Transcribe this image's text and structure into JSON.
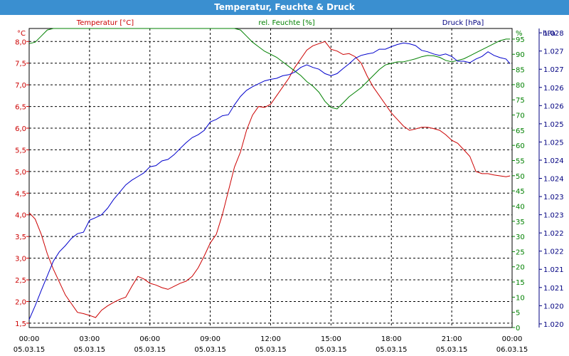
{
  "window": {
    "title": "Temperatur, Feuchte & Druck"
  },
  "chart_data": {
    "type": "line",
    "title": "Temperatur, Feuchte & Druck",
    "colors": {
      "temperature": "#cc0000",
      "humidity": "#008000",
      "pressure": "#0000cc",
      "titlebar": "#3a8fd0"
    },
    "grid": true,
    "x_ticks": [
      {
        "time": "00:00",
        "date": "05.03.15"
      },
      {
        "time": "03:00",
        "date": "05.03.15"
      },
      {
        "time": "06:00",
        "date": "05.03.15"
      },
      {
        "time": "09:00",
        "date": "05.03.15"
      },
      {
        "time": "12:00",
        "date": "05.03.15"
      },
      {
        "time": "15:00",
        "date": "05.03.15"
      },
      {
        "time": "18:00",
        "date": "05.03.15"
      },
      {
        "time": "21:00",
        "date": "05.03.15"
      },
      {
        "time": "00:00",
        "date": "06.03.15"
      }
    ],
    "axes": {
      "temperature": {
        "label": "Temperatur [°C]",
        "unit": "°C",
        "min": 1.4,
        "max": 8.3,
        "ticks": [
          "1,5",
          "2,0",
          "2,5",
          "3,0",
          "3,5",
          "4,0",
          "4,5",
          "5,0",
          "5,5",
          "6,0",
          "6,5",
          "7,0",
          "7,5",
          "8,0"
        ],
        "tick_values": [
          1.5,
          2.0,
          2.5,
          3.0,
          3.5,
          4.0,
          4.5,
          5.0,
          5.5,
          6.0,
          6.5,
          7.0,
          7.5,
          8.0
        ]
      },
      "humidity": {
        "label": "rel. Feuchte [%]",
        "unit": "%",
        "min": 0,
        "max": 98.5,
        "ticks": [
          "0",
          "5",
          "10",
          "15",
          "20",
          "25",
          "30",
          "35",
          "40",
          "45",
          "50",
          "55",
          "60",
          "65",
          "70",
          "75",
          "80",
          "85",
          "90",
          "95"
        ],
        "tick_values": [
          0,
          5,
          10,
          15,
          20,
          25,
          30,
          35,
          40,
          45,
          50,
          55,
          60,
          65,
          70,
          75,
          80,
          85,
          90,
          95
        ]
      },
      "pressure": {
        "label": "Druck [hPa]",
        "unit": "hPa",
        "min": 1019.9,
        "max": 1028.12,
        "ticks": [
          "1.020",
          "1.020",
          "1.021",
          "1.021",
          "1.022",
          "1.022",
          "1.023",
          "1.023",
          "1.024",
          "1.024",
          "1.025",
          "1.025",
          "1.026",
          "1.026",
          "1.027",
          "1.027",
          "1.028"
        ],
        "tick_values": [
          1020.0,
          1020.5,
          1021.0,
          1021.5,
          1022.0,
          1022.5,
          1023.0,
          1023.5,
          1024.0,
          1024.5,
          1025.0,
          1025.5,
          1026.0,
          1026.5,
          1027.0,
          1027.5,
          1028.0
        ]
      }
    },
    "series": [
      {
        "name": "Temperatur",
        "axis": "temperature",
        "color": "#cc0000",
        "x": [
          0,
          0.3,
          0.6,
          0.9,
          1.2,
          1.5,
          1.8,
          2.1,
          2.4,
          2.7,
          3.0,
          3.3,
          3.6,
          3.9,
          4.2,
          4.5,
          4.8,
          5.1,
          5.4,
          5.7,
          6.0,
          6.3,
          6.6,
          6.9,
          7.2,
          7.5,
          7.8,
          8.1,
          8.4,
          8.7,
          9.0,
          9.3,
          9.6,
          9.9,
          10.2,
          10.5,
          10.8,
          11.1,
          11.4,
          11.7,
          12.0,
          12.3,
          12.6,
          12.9,
          13.2,
          13.5,
          13.8,
          14.1,
          14.4,
          14.7,
          15.0,
          15.3,
          15.6,
          15.9,
          16.2,
          16.5,
          16.8,
          17.1,
          17.4,
          17.7,
          18.0,
          18.3,
          18.6,
          18.9,
          19.2,
          19.5,
          19.8,
          20.1,
          20.4,
          20.7,
          21.0,
          21.3,
          21.6,
          21.9,
          22.2,
          22.5,
          22.8,
          23.1,
          23.4,
          23.7,
          23.9
        ],
        "values": [
          4.05,
          3.9,
          3.55,
          3.1,
          2.75,
          2.45,
          2.15,
          1.95,
          1.75,
          1.72,
          1.68,
          1.63,
          1.8,
          1.9,
          1.98,
          2.05,
          2.1,
          2.35,
          2.58,
          2.52,
          2.42,
          2.38,
          2.32,
          2.28,
          2.35,
          2.42,
          2.47,
          2.58,
          2.78,
          3.05,
          3.35,
          3.55,
          4.0,
          4.55,
          5.1,
          5.45,
          5.95,
          6.3,
          6.5,
          6.48,
          6.55,
          6.75,
          6.95,
          7.15,
          7.4,
          7.6,
          7.8,
          7.9,
          7.95,
          8.0,
          7.82,
          7.78,
          7.7,
          7.72,
          7.65,
          7.5,
          7.2,
          6.95,
          6.75,
          6.55,
          6.35,
          6.2,
          6.05,
          5.95,
          5.98,
          6.02,
          6.02,
          5.99,
          5.95,
          5.85,
          5.72,
          5.65,
          5.5,
          5.35,
          5.0,
          4.95,
          4.95,
          4.92,
          4.9,
          4.88,
          4.9
        ]
      },
      {
        "name": "rel. Feuchte",
        "axis": "humidity",
        "color": "#008000",
        "x": [
          0,
          0.3,
          0.6,
          0.9,
          1.2,
          1.5,
          1.8,
          2.1,
          2.4,
          2.7,
          3.0,
          3.3,
          3.6,
          3.9,
          4.2,
          4.5,
          4.8,
          5.1,
          5.4,
          5.7,
          6.0,
          6.3,
          6.6,
          6.9,
          7.2,
          7.5,
          7.8,
          8.1,
          8.4,
          8.7,
          9.0,
          9.3,
          9.6,
          9.9,
          10.2,
          10.5,
          10.8,
          11.1,
          11.4,
          11.7,
          12.0,
          12.3,
          12.6,
          12.9,
          13.2,
          13.5,
          13.8,
          14.1,
          14.4,
          14.7,
          15.0,
          15.3,
          15.6,
          15.9,
          16.2,
          16.5,
          16.8,
          17.1,
          17.4,
          17.7,
          18.0,
          18.3,
          18.6,
          18.9,
          19.2,
          19.5,
          19.8,
          20.1,
          20.4,
          20.7,
          21.0,
          21.3,
          21.6,
          21.9,
          22.2,
          22.5,
          22.8,
          23.1,
          23.4,
          23.7,
          23.9
        ],
        "values": [
          93.5,
          94,
          96,
          98,
          100,
          100,
          100,
          100,
          100,
          100,
          100,
          100,
          100,
          100,
          100,
          100,
          100,
          100,
          100,
          100,
          100,
          100,
          100,
          100,
          100,
          100,
          100,
          100,
          100,
          100,
          100,
          100,
          100,
          100,
          100,
          98,
          96,
          94,
          92.5,
          91,
          90,
          89,
          87.5,
          86,
          84.5,
          83,
          81,
          79.5,
          77.5,
          74.5,
          72.5,
          72,
          74,
          76,
          77.5,
          79,
          81,
          83,
          85,
          86.5,
          87,
          87.5,
          87.5,
          88,
          88.5,
          89.2,
          89.6,
          89.5,
          89,
          88,
          87.5,
          88,
          88.5,
          89.5,
          90.5,
          91.5,
          92.5,
          93.5,
          94.5,
          95,
          95
        ]
      },
      {
        "name": "Druck",
        "axis": "pressure",
        "color": "#0000cc",
        "x": [
          0,
          0.3,
          0.6,
          0.9,
          1.2,
          1.5,
          1.8,
          2.1,
          2.4,
          2.7,
          3.0,
          3.3,
          3.6,
          3.9,
          4.2,
          4.5,
          4.8,
          5.1,
          5.4,
          5.7,
          6.0,
          6.3,
          6.6,
          6.9,
          7.2,
          7.5,
          7.8,
          8.1,
          8.4,
          8.7,
          9.0,
          9.3,
          9.6,
          9.9,
          10.2,
          10.5,
          10.8,
          11.1,
          11.4,
          11.7,
          12.0,
          12.3,
          12.6,
          12.9,
          13.2,
          13.5,
          13.8,
          14.1,
          14.4,
          14.7,
          15.0,
          15.3,
          15.6,
          15.9,
          16.2,
          16.5,
          16.8,
          17.1,
          17.4,
          17.7,
          18.0,
          18.3,
          18.6,
          18.9,
          19.2,
          19.5,
          19.8,
          20.1,
          20.4,
          20.7,
          21.0,
          21.3,
          21.6,
          21.9,
          22.2,
          22.5,
          22.8,
          23.1,
          23.4,
          23.7,
          23.9
        ],
        "values": [
          1020.12,
          1020.5,
          1020.92,
          1021.32,
          1021.72,
          1021.98,
          1022.15,
          1022.35,
          1022.48,
          1022.52,
          1022.85,
          1022.92,
          1023.0,
          1023.18,
          1023.42,
          1023.62,
          1023.82,
          1023.95,
          1024.05,
          1024.15,
          1024.32,
          1024.35,
          1024.48,
          1024.52,
          1024.65,
          1024.82,
          1024.98,
          1025.12,
          1025.2,
          1025.32,
          1025.55,
          1025.62,
          1025.72,
          1025.75,
          1026.02,
          1026.25,
          1026.42,
          1026.52,
          1026.6,
          1026.68,
          1026.72,
          1026.75,
          1026.82,
          1026.85,
          1026.92,
          1027.05,
          1027.12,
          1027.05,
          1027.0,
          1026.88,
          1026.82,
          1026.88,
          1027.02,
          1027.15,
          1027.3,
          1027.38,
          1027.42,
          1027.45,
          1027.55,
          1027.55,
          1027.62,
          1027.68,
          1027.72,
          1027.7,
          1027.65,
          1027.52,
          1027.48,
          1027.42,
          1027.38,
          1027.42,
          1027.35,
          1027.22,
          1027.22,
          1027.18,
          1027.28,
          1027.35,
          1027.48,
          1027.38,
          1027.32,
          1027.28,
          1027.15
        ]
      }
    ]
  }
}
